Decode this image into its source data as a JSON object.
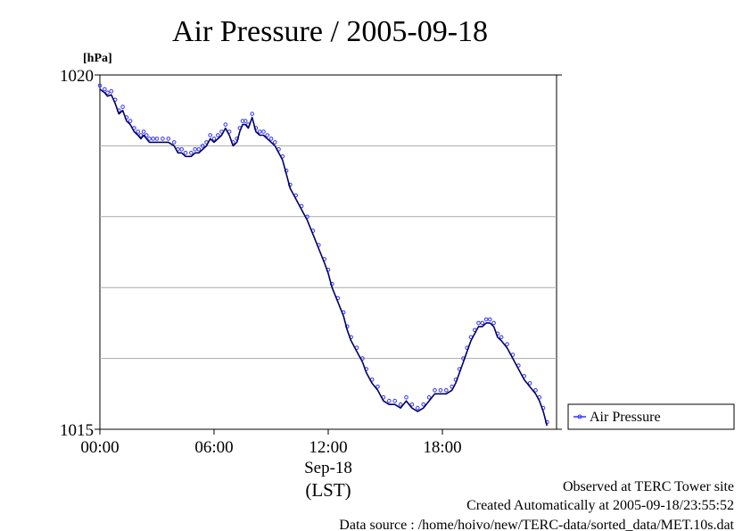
{
  "chart_data": {
    "type": "line",
    "title": "Air Pressure / 2005-09-18",
    "ylabel": "[hPa]",
    "xlabel": "Sep-18",
    "xlabel_unit": "(LST)",
    "ylim": [
      1015,
      1020
    ],
    "xlim": [
      0,
      24
    ],
    "y_ticks": [
      {
        "value": 1015,
        "label": "1015"
      },
      {
        "value": 1020,
        "label": "1020"
      }
    ],
    "y_gridlines": [
      1016,
      1017,
      1018,
      1019
    ],
    "x_ticks": [
      {
        "value": 0,
        "label": "00:00"
      },
      {
        "value": 6,
        "label": "06:00"
      },
      {
        "value": 12,
        "label": "12:00"
      },
      {
        "value": 18,
        "label": "18:00"
      }
    ],
    "legend_position": "right",
    "series": [
      {
        "name": "Air Pressure",
        "color": "#3333ff",
        "line_color": "#000066",
        "x": [
          0.0,
          0.25,
          0.4,
          0.6,
          0.8,
          1.0,
          1.2,
          1.4,
          1.6,
          1.8,
          2.0,
          2.15,
          2.3,
          2.45,
          2.6,
          2.8,
          3.0,
          3.3,
          3.6,
          3.9,
          4.1,
          4.3,
          4.5,
          4.8,
          5.0,
          5.2,
          5.4,
          5.6,
          5.8,
          6.0,
          6.2,
          6.4,
          6.6,
          6.8,
          7.0,
          7.2,
          7.35,
          7.5,
          7.65,
          7.8,
          8.0,
          8.2,
          8.4,
          8.6,
          8.8,
          9.0,
          9.2,
          9.4,
          9.6,
          9.8,
          10.0,
          10.3,
          10.6,
          10.9,
          11.2,
          11.5,
          11.8,
          12.0,
          12.2,
          12.5,
          12.8,
          13.0,
          13.2,
          13.5,
          13.8,
          14.0,
          14.3,
          14.6,
          14.9,
          15.2,
          15.5,
          15.8,
          16.1,
          16.4,
          16.7,
          17.0,
          17.3,
          17.6,
          17.9,
          18.2,
          18.5,
          18.7,
          18.9,
          19.1,
          19.3,
          19.5,
          19.7,
          19.9,
          20.1,
          20.3,
          20.5,
          20.7,
          20.9,
          21.1,
          21.4,
          21.7,
          22.0,
          22.3,
          22.6,
          22.9,
          23.1,
          23.3,
          23.5
        ],
        "values": [
          1019.8,
          1019.75,
          1019.7,
          1019.72,
          1019.6,
          1019.45,
          1019.5,
          1019.35,
          1019.3,
          1019.2,
          1019.15,
          1019.1,
          1019.15,
          1019.1,
          1019.05,
          1019.05,
          1019.05,
          1019.05,
          1019.05,
          1019.0,
          1018.9,
          1018.9,
          1018.85,
          1018.85,
          1018.9,
          1018.9,
          1018.95,
          1019.0,
          1019.1,
          1019.05,
          1019.1,
          1019.15,
          1019.25,
          1019.15,
          1019.0,
          1019.05,
          1019.2,
          1019.3,
          1019.3,
          1019.25,
          1019.4,
          1019.2,
          1019.15,
          1019.15,
          1019.1,
          1019.05,
          1019.0,
          1018.9,
          1018.8,
          1018.6,
          1018.4,
          1018.25,
          1018.1,
          1017.95,
          1017.75,
          1017.55,
          1017.35,
          1017.2,
          1017.0,
          1016.8,
          1016.6,
          1016.4,
          1016.25,
          1016.1,
          1015.95,
          1015.8,
          1015.65,
          1015.55,
          1015.4,
          1015.35,
          1015.35,
          1015.3,
          1015.4,
          1015.3,
          1015.25,
          1015.3,
          1015.4,
          1015.5,
          1015.5,
          1015.5,
          1015.55,
          1015.65,
          1015.8,
          1015.95,
          1016.1,
          1016.25,
          1016.35,
          1016.45,
          1016.45,
          1016.5,
          1016.5,
          1016.45,
          1016.3,
          1016.25,
          1016.15,
          1016.0,
          1015.85,
          1015.7,
          1015.6,
          1015.5,
          1015.4,
          1015.25,
          1015.05
        ]
      }
    ]
  },
  "footer": {
    "line1": "Observed at TERC Tower site",
    "line2": "Created Automatically at 2005-09-18/23:55:52",
    "line3": "Data source : /home/hoivo/new/TERC-data/sorted_data/MET.10s.dat"
  }
}
